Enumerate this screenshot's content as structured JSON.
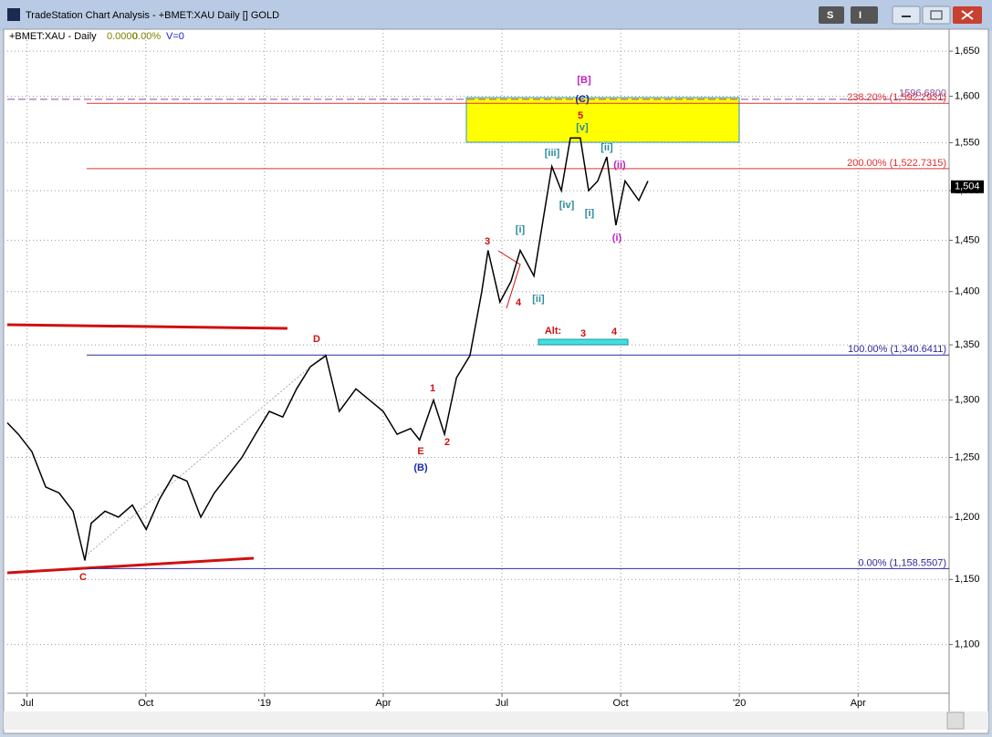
{
  "window": {
    "title": "TradeStation Chart Analysis - +BMET:XAU Daily [] GOLD",
    "symbol": "+BMET:XAU - Daily",
    "change": "0.0000",
    "change_pct": "0.00%",
    "volume": "V=0",
    "buttons": [
      "S",
      "I"
    ]
  },
  "chart_data": {
    "type": "line",
    "log_scale": true,
    "grid": true,
    "color": "#000000",
    "xlim": [
      -0.5,
      23.3
    ],
    "ylim": [
      1064,
      1675
    ],
    "xticks": [
      {
        "value": 0,
        "label": "Jul"
      },
      {
        "value": 3,
        "label": "Oct"
      },
      {
        "value": 6,
        "label": "'19"
      },
      {
        "value": 9,
        "label": "Apr"
      },
      {
        "value": 12,
        "label": "Jul"
      },
      {
        "value": 15,
        "label": "Oct"
      },
      {
        "value": 18,
        "label": "'20"
      },
      {
        "value": 21,
        "label": "Apr"
      }
    ],
    "yticks": [
      {
        "value": 1100,
        "label": "1,100"
      },
      {
        "value": 1150,
        "label": "1,150"
      },
      {
        "value": 1200,
        "label": "1,200"
      },
      {
        "value": 1250,
        "label": "1,250"
      },
      {
        "value": 1300,
        "label": "1,300"
      },
      {
        "value": 1350,
        "label": "1,350"
      },
      {
        "value": 1400,
        "label": "1,400"
      },
      {
        "value": 1450,
        "label": "1,450"
      },
      {
        "value": 1500,
        "label": "1,500"
      },
      {
        "value": 1550,
        "label": "1,550"
      },
      {
        "value": 1600,
        "label": "1,600"
      },
      {
        "value": 1650,
        "label": "1,650"
      }
    ],
    "x": [
      -0.5,
      -0.22,
      0.12,
      0.47,
      0.81,
      1.16,
      1.46,
      1.62,
      1.97,
      2.31,
      2.66,
      3.01,
      3.35,
      3.7,
      4.04,
      4.39,
      4.73,
      5.08,
      5.43,
      5.77,
      6.12,
      6.46,
      6.81,
      7.16,
      7.55,
      7.89,
      8.31,
      8.65,
      9.0,
      9.35,
      9.69,
      9.92,
      10.27,
      10.55,
      10.85,
      11.19,
      11.49,
      11.65,
      11.95,
      12.23,
      12.46,
      12.81,
      13.08,
      13.26,
      13.5,
      13.73,
      13.98,
      14.19,
      14.42,
      14.65,
      14.88,
      15.11,
      15.46,
      15.69
    ],
    "values": [
      1280,
      1270,
      1255,
      1225,
      1220,
      1205,
      1165,
      1195,
      1205,
      1200,
      1210,
      1190,
      1215,
      1235,
      1230,
      1200,
      1220,
      1235,
      1250,
      1270,
      1290,
      1285,
      1310,
      1330,
      1340,
      1290,
      1310,
      1300,
      1290,
      1270,
      1275,
      1265,
      1300,
      1270,
      1320,
      1340,
      1400,
      1440,
      1390,
      1410,
      1440,
      1415,
      1480,
      1525,
      1500,
      1555,
      1555,
      1500,
      1510,
      1535,
      1465,
      1510,
      1490,
      1510
    ],
    "last_price": {
      "value": 1504,
      "label": "1,504"
    },
    "levels": [
      {
        "value": 1596.68,
        "label": "1596.6800",
        "color": "#8a4fa8",
        "dashed": true
      },
      {
        "value": 1592.2931,
        "label": "238.20% (1,592.2931)",
        "color": "#e03030",
        "dashed": false
      },
      {
        "value": 1522.7315,
        "label": "200.00% (1,522.7315)",
        "color": "#e03030",
        "dashed": false
      },
      {
        "value": 1340.6411,
        "label": "100.00% (1,340.6411)",
        "color": "#2a2a9a",
        "dashed": false
      },
      {
        "value": 1158.5507,
        "label": "0.00% (1,158.5507)",
        "color": "#2a2a9a",
        "dashed": false
      }
    ],
    "annotations": [
      "C",
      "D",
      "E",
      "(B)",
      "1",
      "2",
      "3",
      "4",
      "[i]",
      "[ii]",
      "[iii]",
      "[iv]",
      "[v]",
      "5",
      "(C)",
      "[B]",
      "[ii]",
      "[i]",
      "(ii)",
      "(i)",
      "Alt:",
      "3",
      "4"
    ]
  }
}
